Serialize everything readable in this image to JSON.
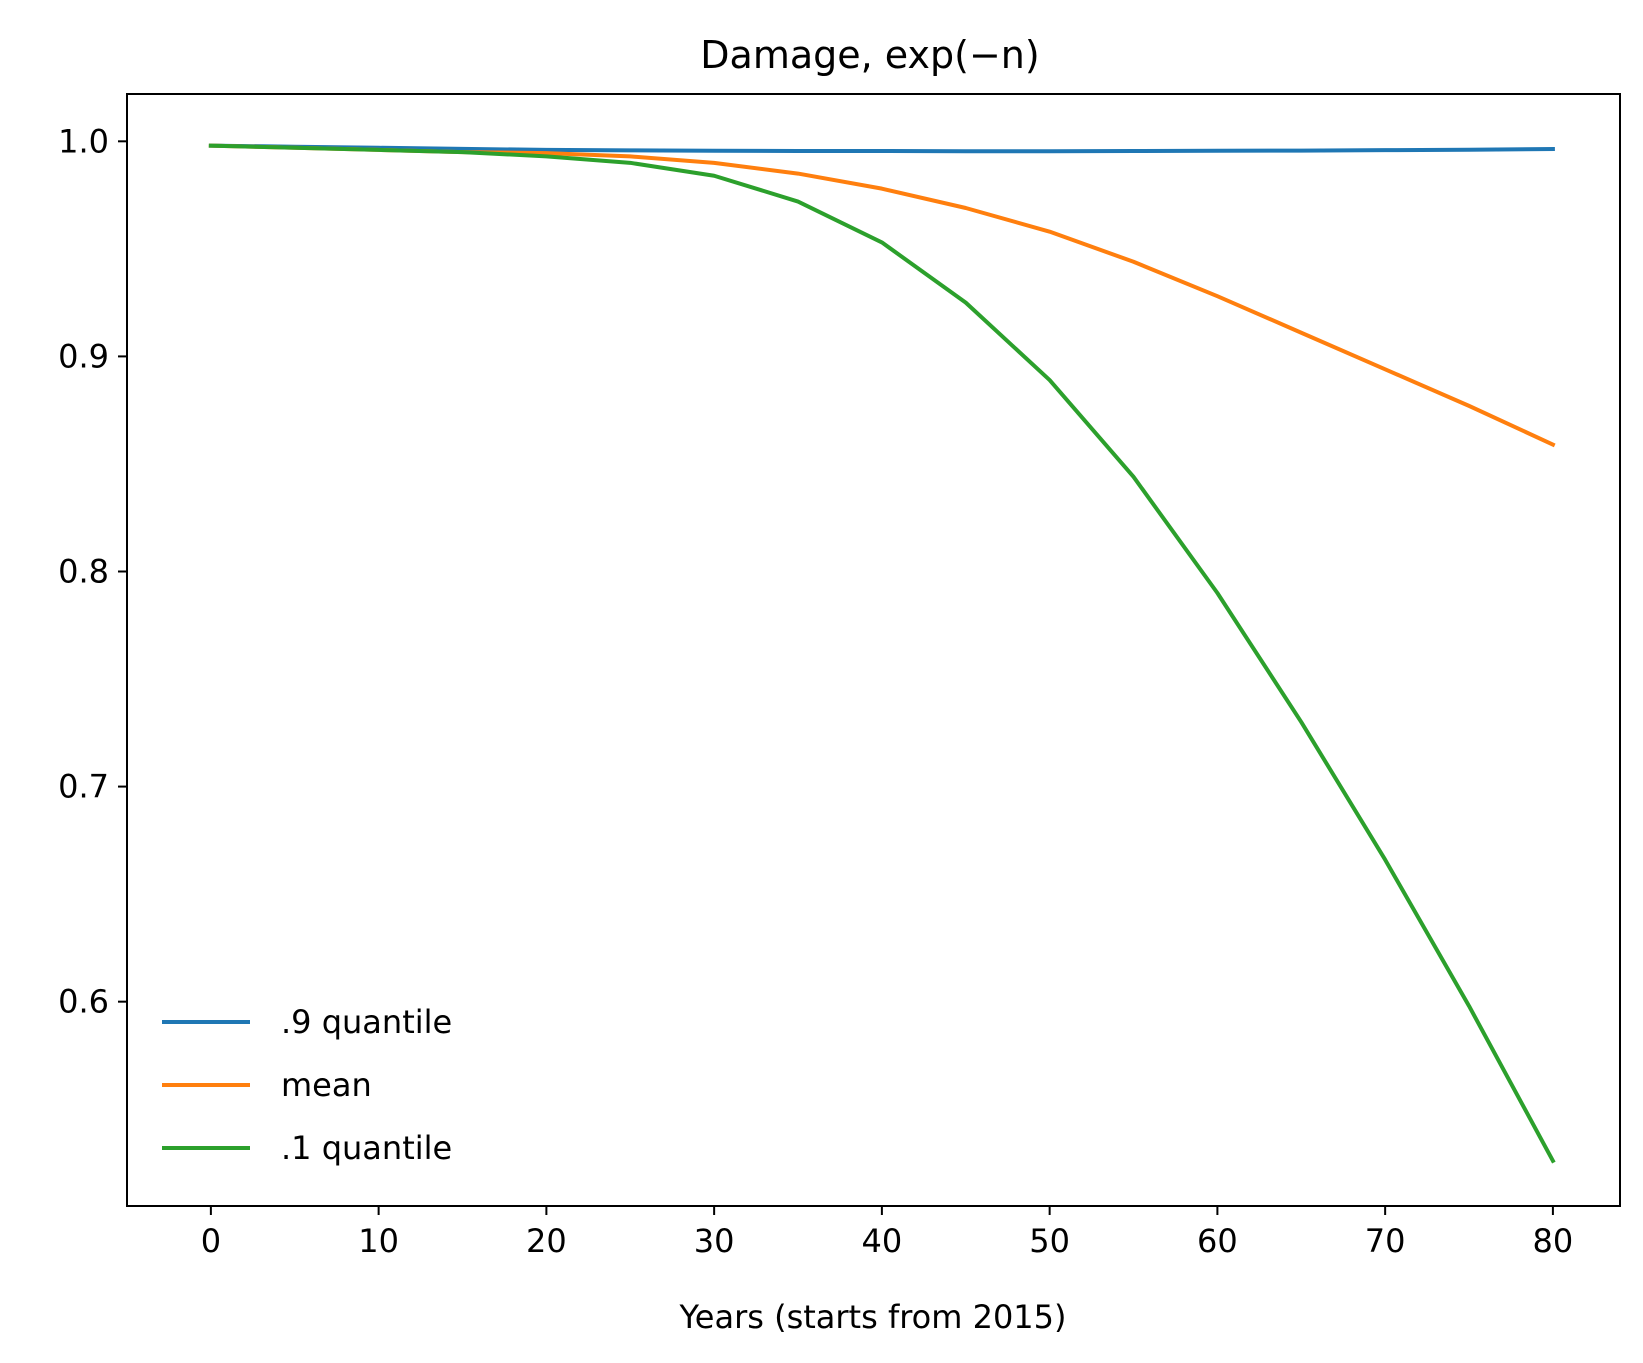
{
  "chart_data": {
    "type": "line",
    "title": "Damage, exp(−n)",
    "xlabel": "Years (starts from 2015)",
    "ylabel": "",
    "xlim": [
      -5,
      84
    ],
    "ylim": [
      0.505,
      1.022
    ],
    "xticks": [
      0,
      10,
      20,
      30,
      40,
      50,
      60,
      70,
      80
    ],
    "yticks": [
      0.6,
      0.7,
      0.8,
      0.9,
      1.0
    ],
    "xtick_labels": [
      "0",
      "10",
      "20",
      "30",
      "40",
      "50",
      "60",
      "70",
      "80"
    ],
    "ytick_labels": [
      "0.6",
      "0.7",
      "0.8",
      "0.9",
      "1.0"
    ],
    "grid": false,
    "legend_position": "lower-left",
    "x": [
      0,
      5,
      10,
      15,
      20,
      25,
      30,
      35,
      40,
      45,
      50,
      55,
      60,
      65,
      70,
      75,
      80
    ],
    "series": [
      {
        "name": ".9 quantile",
        "color": "#1f77b4",
        "values": [
          0.998,
          0.9975,
          0.997,
          0.9965,
          0.996,
          0.9958,
          0.9956,
          0.9955,
          0.9955,
          0.9954,
          0.9954,
          0.9955,
          0.9956,
          0.9957,
          0.9959,
          0.9961,
          0.9964
        ]
      },
      {
        "name": "mean",
        "color": "#ff7f0e",
        "values": [
          0.998,
          0.997,
          0.996,
          0.995,
          0.9945,
          0.993,
          0.99,
          0.985,
          0.978,
          0.969,
          0.958,
          0.944,
          0.928,
          0.911,
          0.894,
          0.877,
          0.859
        ]
      },
      {
        "name": ".1 quantile",
        "color": "#2ca02c",
        "values": [
          0.998,
          0.997,
          0.996,
          0.995,
          0.993,
          0.99,
          0.984,
          0.972,
          0.953,
          0.925,
          0.889,
          0.844,
          0.79,
          0.73,
          0.666,
          0.598,
          0.526
        ]
      }
    ]
  }
}
